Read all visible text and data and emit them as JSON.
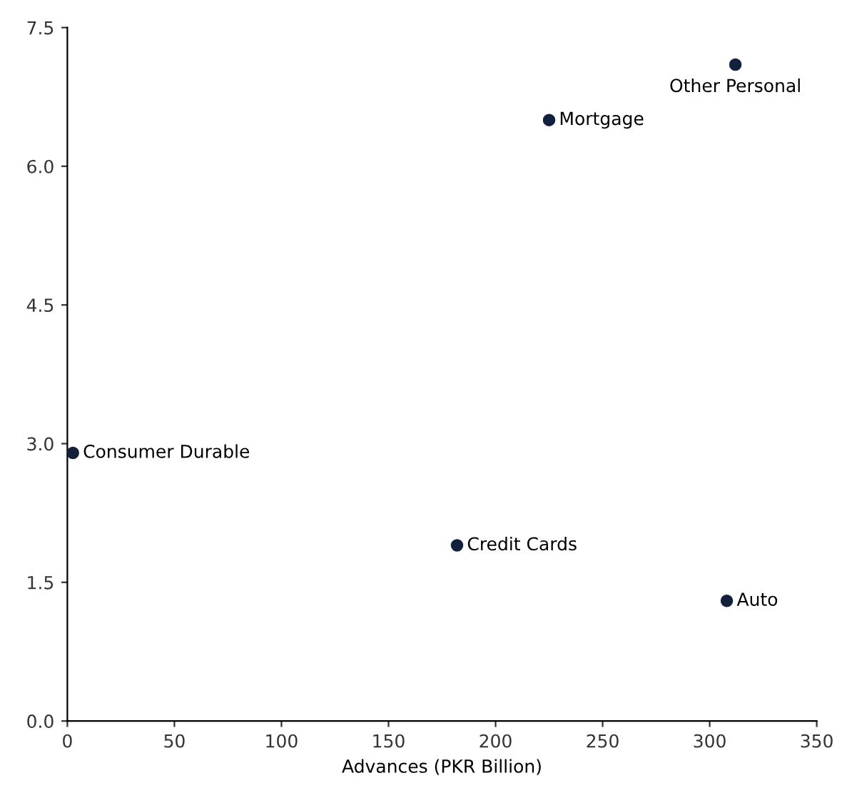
{
  "chart_data": {
    "type": "scatter",
    "xlabel": "Advances (PKR Billion)",
    "x": [
      312,
      225,
      2.6,
      182,
      308
    ],
    "series": [
      {
        "color": "#14213d",
        "values": [
          7.1,
          6.5,
          2.9,
          1.9,
          1.3
        ]
      }
    ],
    "annotations": [
      {
        "text": "Other Personal",
        "x": 312,
        "y": 7.1
      },
      {
        "text": "Mortgage",
        "x": 225,
        "y": 6.5
      },
      {
        "text": "Consumer Durable",
        "x": 2.6,
        "y": 2.9
      },
      {
        "text": "Credit Cards",
        "x": 182,
        "y": 1.9
      },
      {
        "text": "Auto",
        "x": 308,
        "y": 1.3
      }
    ],
    "xlim": [
      0,
      350
    ],
    "ylim": [
      0,
      7.5
    ],
    "xticks": [
      0,
      50,
      100,
      150,
      200,
      250,
      300,
      350
    ],
    "yticks": [
      {
        "value": 0,
        "label": "0.0"
      },
      {
        "value": 1.5,
        "label": "1.5"
      },
      {
        "value": 3.0,
        "label": "3.0"
      },
      {
        "value": 4.5,
        "label": "4.5"
      },
      {
        "value": 6.0,
        "label": "6.0"
      },
      {
        "value": 7.5,
        "label": "7.5"
      }
    ],
    "grid": false,
    "marker": "circle"
  }
}
